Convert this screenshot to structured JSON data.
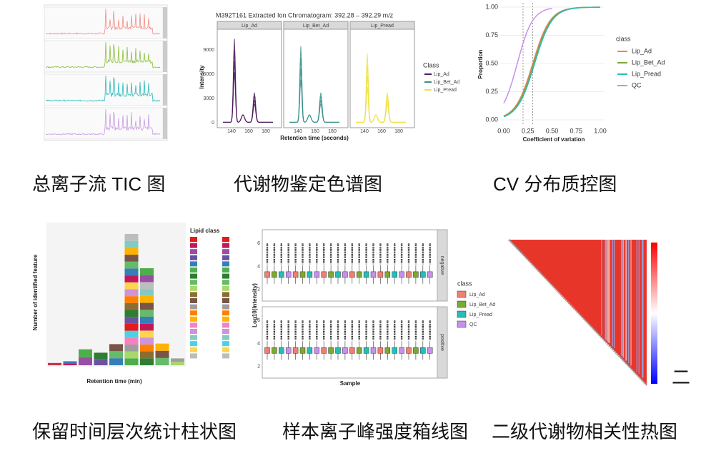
{
  "panels": [
    {
      "caption": "总离子流 TIC 图"
    },
    {
      "caption": "代谢物鉴定色谱图",
      "title": "M392T161 Extracted Ion Chromatogram: 392.28 – 392.29 m/z",
      "facets": [
        "Lip_Ad",
        "Lip_Bet_Ad",
        "Lip_Pread"
      ],
      "y_label": "Intensity",
      "x_label": "Retention time (seconds)",
      "yticks": [
        "0",
        "3000",
        "6000",
        "9000"
      ],
      "xticks": [
        "140",
        "160",
        "180"
      ],
      "legend_title": "Class",
      "legend": [
        "Lip_Ad",
        "Lip_Bet_Ad",
        "Lip_Pread"
      ]
    },
    {
      "caption": "CV 分布质控图",
      "y_label": "Proportion",
      "x_label": "Coefficient of variation",
      "yticks": [
        "0.00",
        "0.25",
        "0.50",
        "0.75",
        "1.00"
      ],
      "xticks": [
        "0.00",
        "0.25",
        "0.50",
        "0.75",
        "1.00"
      ],
      "legend_title": "class",
      "legend": [
        "Lip_Ad",
        "Lip_Bet_Ad",
        "Lip_Pread",
        "QC"
      ]
    },
    {
      "caption": "保留时间层次统计柱状图",
      "y_label": "Number of identified feature",
      "x_label": "Retention time (min)",
      "legend_title": "Lipid class"
    },
    {
      "caption": "样本离子峰强度箱线图",
      "y_label": "Log10(Intensity)",
      "x_label": "Sample",
      "facets": [
        "negative",
        "positive"
      ],
      "yticks": [
        "2",
        "4",
        "6"
      ],
      "legend_title": "class",
      "legend": [
        "Lip_Ad",
        "Lip_Bet_Ad",
        "Lip_Pread",
        "QC"
      ]
    },
    {
      "caption": "二级代谢物相关性热图"
    }
  ],
  "side_mark": "二"
}
